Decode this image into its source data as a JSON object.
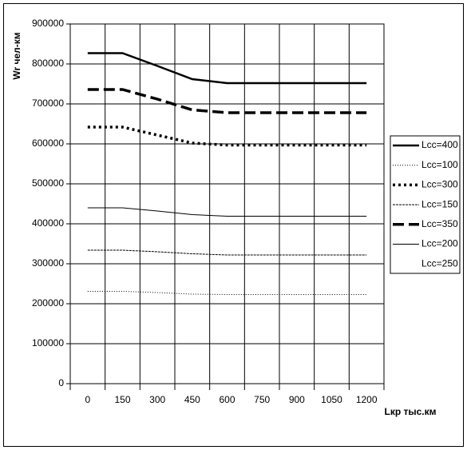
{
  "chart_data": {
    "type": "line",
    "y_label": "Wr чел-км",
    "x_label": "Lкр тыс.км",
    "categories": [
      0,
      150,
      300,
      450,
      600,
      750,
      900,
      1050,
      1200
    ],
    "ylim": [
      0,
      900000
    ],
    "yticks": [
      0,
      100000,
      200000,
      300000,
      400000,
      500000,
      600000,
      700000,
      800000,
      900000
    ],
    "grid": true,
    "legend": "right",
    "series": [
      {
        "name": "Lcc=400",
        "color": "#000000",
        "width": 2.5,
        "dash": "none",
        "values": [
          827000,
          827000,
          795000,
          762000,
          752000,
          752000,
          752000,
          752000,
          752000
        ]
      },
      {
        "name": "Lcc=100",
        "color": "#000000",
        "width": 1,
        "dash": "1 2",
        "values": [
          231000,
          231000,
          228000,
          224000,
          223000,
          223000,
          223000,
          223000,
          223000
        ]
      },
      {
        "name": "Lcc=300",
        "color": "#000000",
        "width": 3.5,
        "dash": "3 4",
        "values": [
          642000,
          642000,
          622000,
          602000,
          597000,
          597000,
          597000,
          597000,
          597000
        ]
      },
      {
        "name": "Lcc=150",
        "color": "#000000",
        "width": 1,
        "dash": "3 1",
        "values": [
          334000,
          334000,
          330000,
          325000,
          322000,
          322000,
          322000,
          322000,
          322000
        ]
      },
      {
        "name": "Lcc=350",
        "color": "#000000",
        "width": 3.5,
        "dash": "14 6",
        "values": [
          736000,
          736000,
          712000,
          685000,
          678000,
          678000,
          678000,
          678000,
          678000
        ]
      },
      {
        "name": "Lcc=200",
        "color": "#000000",
        "width": 1,
        "dash": "none",
        "values": [
          440000,
          440000,
          432000,
          423000,
          419000,
          419000,
          419000,
          419000,
          419000
        ]
      },
      {
        "name": "Lcc=250",
        "color": "none",
        "width": 1,
        "dash": "none",
        "values": [
          null,
          null,
          null,
          null,
          null,
          null,
          null,
          null,
          null
        ]
      }
    ]
  }
}
